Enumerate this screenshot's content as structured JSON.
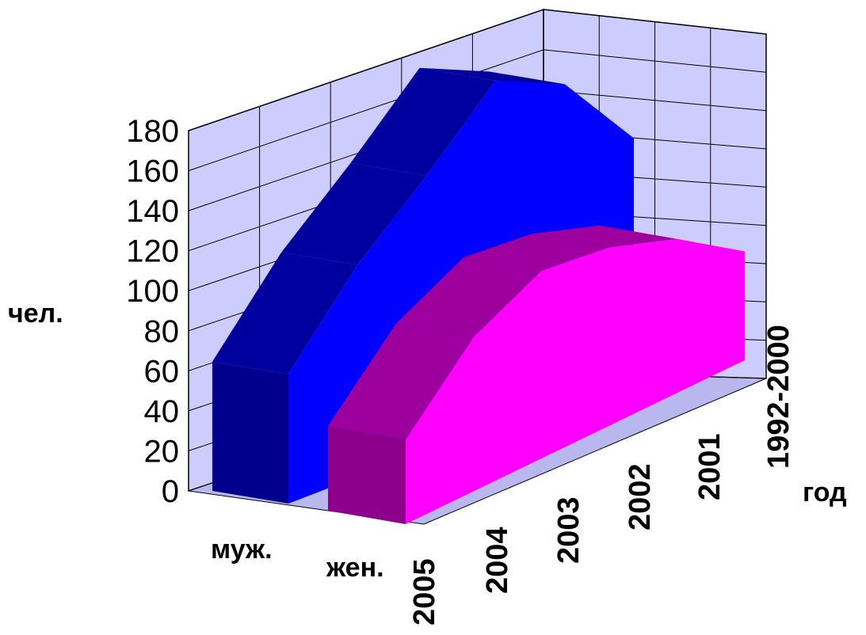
{
  "chart_data": {
    "type": "area",
    "is_3d": true,
    "title": "",
    "ylabel": "чел.",
    "xlabel": "год",
    "ylim": [
      0,
      180
    ],
    "yticks": [
      "0",
      "20",
      "40",
      "60",
      "80",
      "100",
      "120",
      "140",
      "160",
      "180"
    ],
    "x": [
      "2005",
      "2004",
      "2003",
      "2002",
      "2001",
      "1992-2000"
    ],
    "series": [
      {
        "name": "муж.",
        "values": [
          64,
          105,
          136,
          170,
          155,
          115
        ],
        "color": "#0000ff"
      },
      {
        "name": "жен.",
        "values": [
          45,
          82,
          100,
          95,
          82,
          58
        ],
        "color": "#ff00ff"
      }
    ],
    "grid": true,
    "wall_color": "#ccccff"
  }
}
